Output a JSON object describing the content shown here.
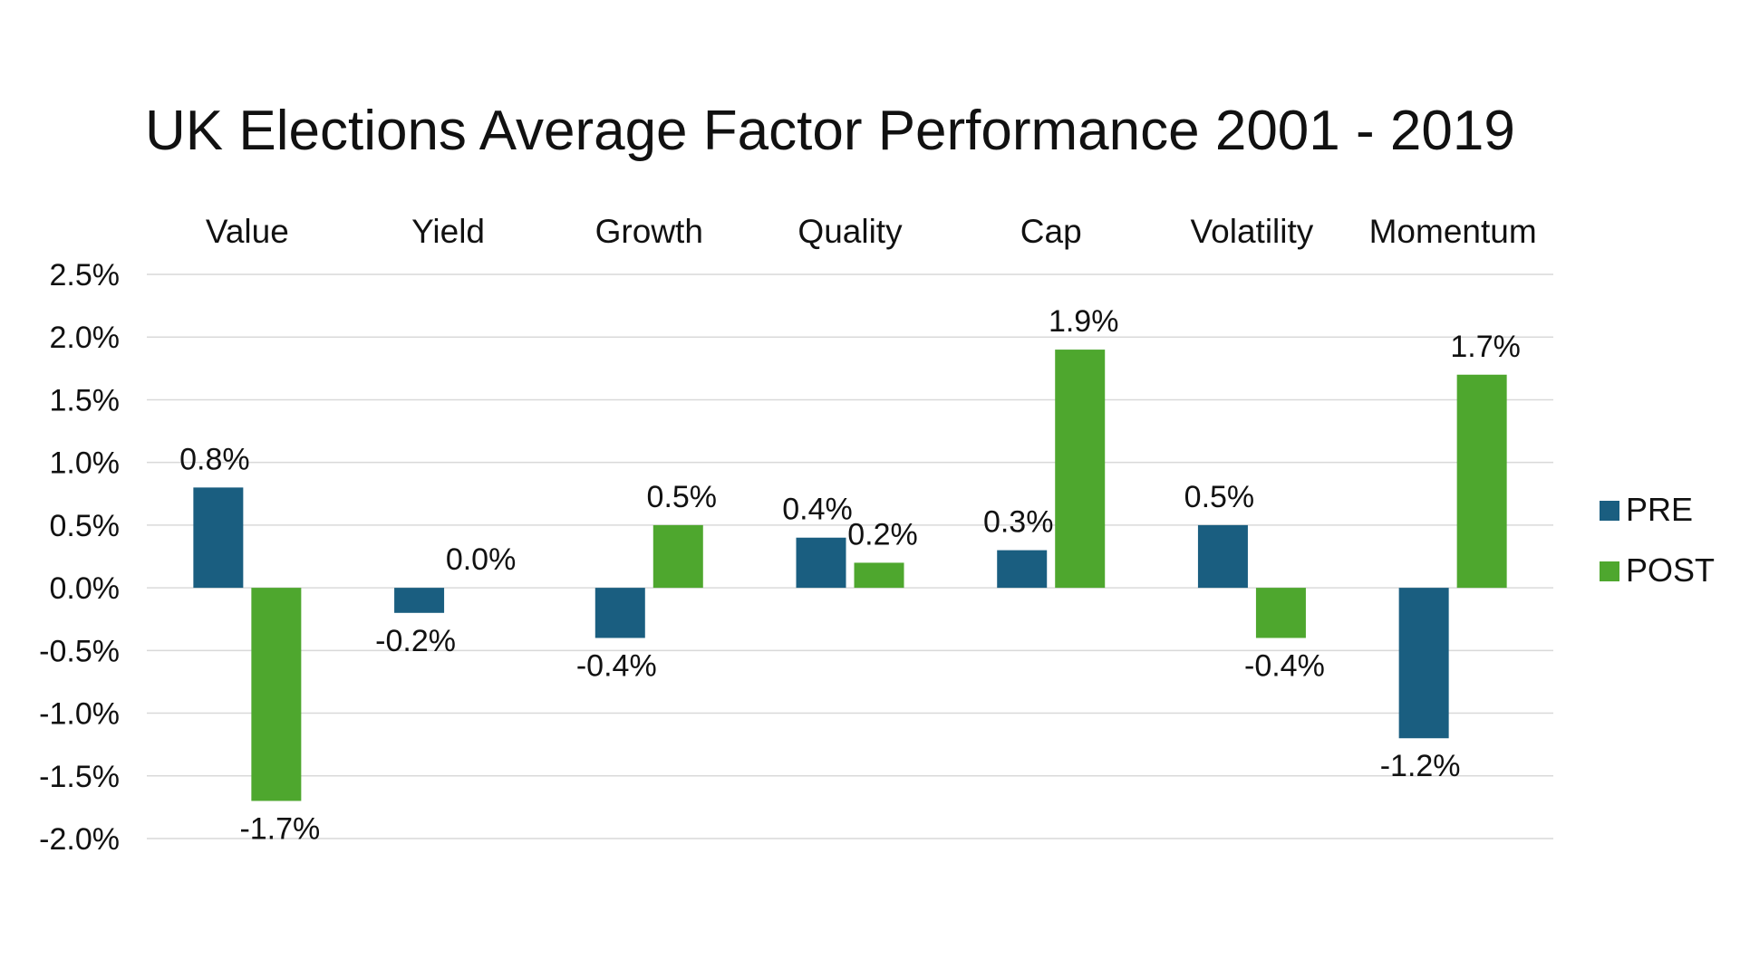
{
  "chart_data": {
    "type": "bar",
    "title": "UK Elections Average Factor Performance 2001 - 2019",
    "categories": [
      "Value",
      "Yield",
      "Growth",
      "Quality",
      "Cap",
      "Volatility",
      "Momentum"
    ],
    "series": [
      {
        "name": "PRE",
        "color": "#1a5e80",
        "values": [
          0.8,
          -0.2,
          -0.4,
          0.4,
          0.3,
          0.5,
          -1.2
        ],
        "labels": [
          "0.8%",
          "-0.2%",
          "-0.4%",
          "0.4%",
          "0.3%",
          "0.5%",
          "-1.2%"
        ]
      },
      {
        "name": "POST",
        "color": "#4ea72e",
        "values": [
          -1.7,
          0.0,
          0.5,
          0.2,
          1.9,
          -0.4,
          1.7
        ],
        "labels": [
          "-1.7%",
          "0.0%",
          "0.5%",
          "0.2%",
          "1.9%",
          "-0.4%",
          "1.7%"
        ]
      }
    ],
    "y_ticks": [
      "2.5%",
      "2.0%",
      "1.5%",
      "1.0%",
      "0.5%",
      "0.0%",
      "-0.5%",
      "-1.0%",
      "-1.5%",
      "-2.0%"
    ],
    "y_tick_values": [
      2.5,
      2.0,
      1.5,
      1.0,
      0.5,
      0.0,
      -0.5,
      -1.0,
      -1.5,
      -2.0
    ],
    "ylim": [
      -2.0,
      2.5
    ],
    "grid": true,
    "category_label_position": "top",
    "legend_position": "right"
  }
}
